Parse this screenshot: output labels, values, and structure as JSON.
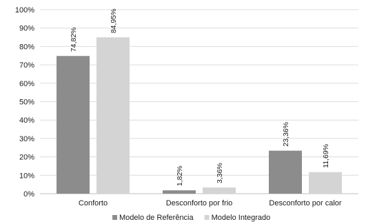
{
  "chart_data": {
    "type": "bar",
    "categories": [
      "Conforto",
      "Desconforto por frio",
      "Desconforto por calor"
    ],
    "series": [
      {
        "name": "Modelo de Referência",
        "values": [
          74.82,
          1.82,
          23.36
        ],
        "labels": [
          "74,82%",
          "1,82%",
          "23,36%"
        ],
        "color": "#8c8c8c"
      },
      {
        "name": "Modelo Integrado",
        "values": [
          84.95,
          3.36,
          11.69
        ],
        "labels": [
          "84,95%",
          "3,36%",
          "11,69%"
        ],
        "color": "#d4d4d4"
      }
    ],
    "ylim": [
      0,
      100
    ],
    "yticks": [
      "0%",
      "10%",
      "20%",
      "30%",
      "40%",
      "50%",
      "60%",
      "70%",
      "80%",
      "90%",
      "100%"
    ],
    "grid": true,
    "legend_position": "bottom"
  }
}
